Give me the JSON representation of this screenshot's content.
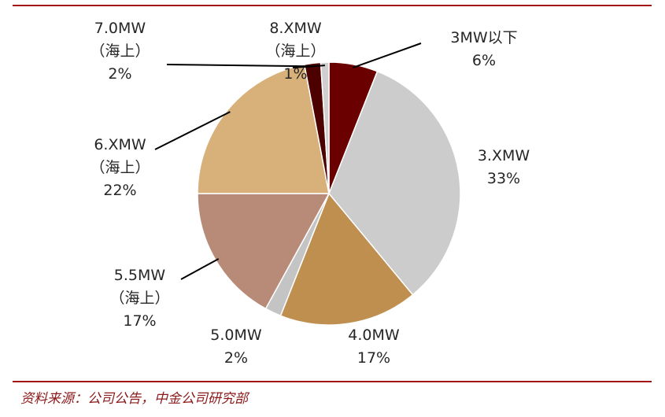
{
  "chart_data": {
    "type": "pie",
    "start_angle_deg": 90,
    "direction": "clockwise",
    "slices": [
      {
        "id": "s3",
        "label_lines": [
          "3MW以下",
          "6%"
        ],
        "value": 6,
        "color": "#6b0000"
      },
      {
        "id": "s3x",
        "label_lines": [
          "3.XMW",
          "33%"
        ],
        "value": 33,
        "color": "#cccccc"
      },
      {
        "id": "s4",
        "label_lines": [
          "4.0MW",
          "17%"
        ],
        "value": 17,
        "color": "#bf8f4f"
      },
      {
        "id": "s5",
        "label_lines": [
          "5.0MW",
          "2%"
        ],
        "value": 2,
        "color": "#c4c4c4"
      },
      {
        "id": "s55",
        "label_lines": [
          "5.5MW",
          "（海上）",
          "17%"
        ],
        "value": 17,
        "color": "#b88a78"
      },
      {
        "id": "s6x",
        "label_lines": [
          "6.XMW",
          "（海上）",
          "22%"
        ],
        "value": 22,
        "color": "#d8b07a"
      },
      {
        "id": "s7",
        "label_lines": [
          "7.0MW",
          "（海上）",
          "2%"
        ],
        "value": 2,
        "color": "#4d0000"
      },
      {
        "id": "s8x",
        "label_lines": [
          "8.XMW",
          "（海上）",
          "1%"
        ],
        "value": 1,
        "color": "#cfcfcf"
      }
    ],
    "title": "",
    "legend": "none"
  },
  "source_text": "资料来源：公司公告，中金公司研究部",
  "watermark_text": "",
  "colors": {
    "rule": "#a31515",
    "leader": "#000000",
    "text": "#262626"
  }
}
